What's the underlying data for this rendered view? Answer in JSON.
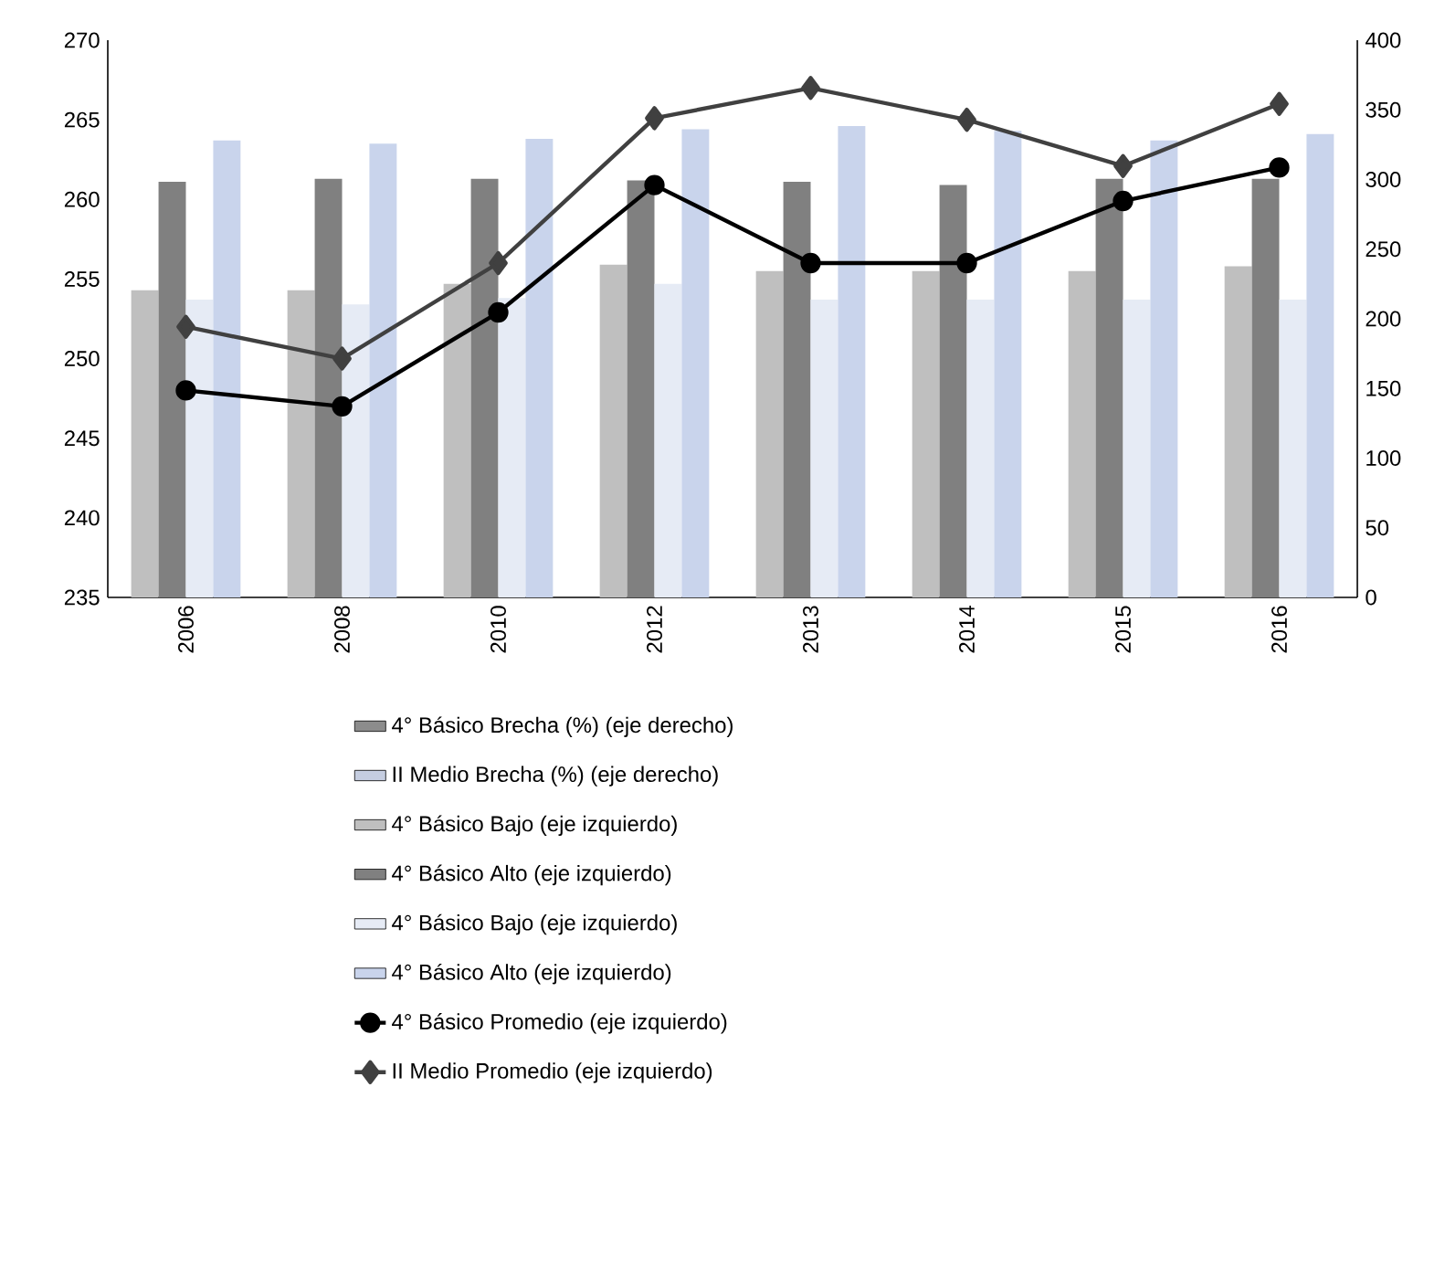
{
  "chart_data": {
    "type": "bar",
    "categories": [
      "2006",
      "2008",
      "2010",
      "2012",
      "2013",
      "2014",
      "2015",
      "2016"
    ],
    "ylim": [
      235,
      270
    ],
    "yticks": [
      235,
      240,
      245,
      250,
      255,
      260,
      265,
      270
    ],
    "y2lim": [
      0,
      400
    ],
    "y2ticks": [
      0,
      50,
      100,
      150,
      200,
      250,
      300,
      350,
      400
    ],
    "legend": "bottom",
    "series": [
      {
        "name": "4° Básico Brecha (%) (eje derecho)",
        "color": "#8c8c8c",
        "axis": "y2",
        "values": [
          null,
          null,
          null,
          null,
          null,
          null,
          null,
          null
        ]
      },
      {
        "name": "II Medio Brecha (%) (eje derecho)",
        "color": "#c5cde0",
        "axis": "y2",
        "values": [
          null,
          null,
          null,
          null,
          null,
          null,
          null,
          null
        ]
      },
      {
        "name": "4° Básico Bajo (eje izquierdo)",
        "color": "#bfbfbf",
        "values": [
          254.3,
          254.3,
          254.7,
          255.9,
          255.5,
          255.5,
          255.5,
          255.8
        ]
      },
      {
        "name": "4° Básico Alto (eje izquierdo)",
        "color": "#808080",
        "values": [
          261.1,
          261.3,
          261.3,
          261.2,
          261.1,
          260.9,
          261.3,
          261.3
        ]
      },
      {
        "name": "4° Básico Bajo (eje izquierdo)",
        "color": "#e6ebf5",
        "values": [
          253.7,
          253.4,
          253.8,
          254.7,
          253.7,
          253.7,
          253.7,
          253.7
        ]
      },
      {
        "name": "4° Básico Alto (eje izquierdo)",
        "color": "#c9d4ec",
        "values": [
          263.7,
          263.5,
          263.8,
          264.4,
          264.6,
          264.3,
          263.7,
          264.1
        ]
      },
      {
        "name": "4° Básico Promedio (eje izquierdo)",
        "type": "line",
        "marker": "circle",
        "color": "#000000",
        "values": [
          248.0,
          247.0,
          252.9,
          260.9,
          256.0,
          256.0,
          259.9,
          262.0
        ]
      },
      {
        "name": "II Medio Promedio (eje izquierdo)",
        "type": "line",
        "marker": "diamond",
        "color": "#404040",
        "values": [
          252.0,
          250.0,
          256.0,
          265.1,
          267.0,
          265.0,
          262.1,
          266.0
        ]
      }
    ]
  }
}
